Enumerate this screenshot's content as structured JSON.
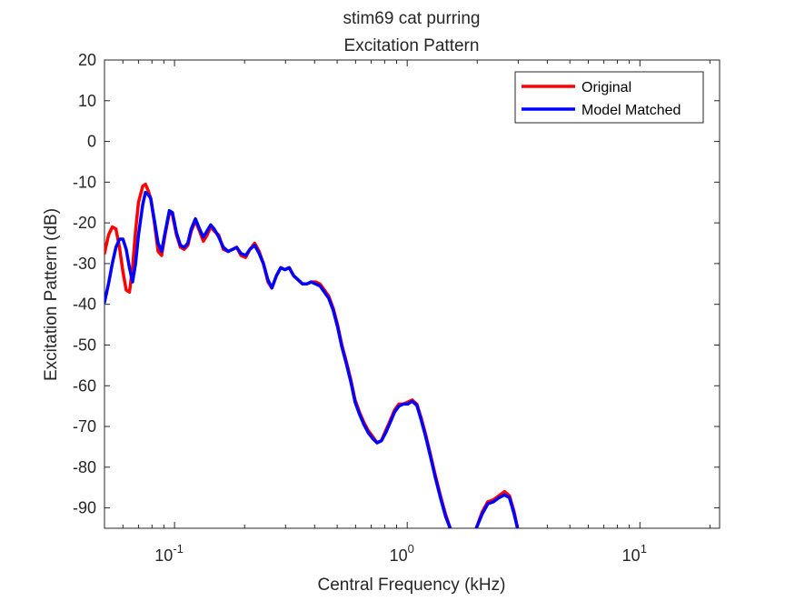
{
  "chart_data": {
    "type": "line",
    "title": "stim69 cat purring",
    "subtitle": "Excitation Pattern",
    "xlabel": "Central Frequency (kHz)",
    "ylabel": "Excitation Pattern (dB)",
    "xscale": "log",
    "xlim": [
      0.05,
      22
    ],
    "ylim": [
      -95,
      20
    ],
    "yticks": [
      "20",
      "10",
      "0",
      "-10",
      "-20",
      "-30",
      "-40",
      "-50",
      "-60",
      "-70",
      "-80",
      "-90"
    ],
    "xticks": [
      {
        "base": "10",
        "exp": "-1"
      },
      {
        "base": "10",
        "exp": "0"
      },
      {
        "base": "10",
        "exp": "1"
      }
    ],
    "legend": {
      "position": "top-right"
    },
    "grid": false,
    "series": [
      {
        "name": "Original",
        "color": "#ff0000",
        "points": [
          [
            0.05,
            -27.5
          ],
          [
            0.052,
            -23
          ],
          [
            0.054,
            -21
          ],
          [
            0.056,
            -21.5
          ],
          [
            0.058,
            -26
          ],
          [
            0.06,
            -32
          ],
          [
            0.062,
            -36.5
          ],
          [
            0.064,
            -37
          ],
          [
            0.066,
            -31
          ],
          [
            0.068,
            -22
          ],
          [
            0.07,
            -15
          ],
          [
            0.073,
            -11
          ],
          [
            0.075,
            -10.5
          ],
          [
            0.077,
            -12
          ],
          [
            0.079,
            -14
          ],
          [
            0.082,
            -20
          ],
          [
            0.085,
            -27
          ],
          [
            0.088,
            -28
          ],
          [
            0.091,
            -23
          ],
          [
            0.095,
            -17.5
          ],
          [
            0.098,
            -18
          ],
          [
            0.102,
            -23
          ],
          [
            0.106,
            -26
          ],
          [
            0.11,
            -26.5
          ],
          [
            0.114,
            -25.5
          ],
          [
            0.118,
            -22
          ],
          [
            0.123,
            -19.5
          ],
          [
            0.128,
            -22
          ],
          [
            0.133,
            -24.5
          ],
          [
            0.138,
            -23
          ],
          [
            0.143,
            -21
          ],
          [
            0.148,
            -22
          ],
          [
            0.155,
            -23
          ],
          [
            0.162,
            -26.5
          ],
          [
            0.17,
            -27
          ],
          [
            0.178,
            -26.5
          ],
          [
            0.185,
            -26
          ],
          [
            0.193,
            -28
          ],
          [
            0.202,
            -28.5
          ],
          [
            0.211,
            -26.5
          ],
          [
            0.221,
            -25
          ],
          [
            0.231,
            -27
          ],
          [
            0.241,
            -30
          ],
          [
            0.252,
            -34.5
          ],
          [
            0.262,
            -36
          ],
          [
            0.274,
            -33
          ],
          [
            0.286,
            -31
          ],
          [
            0.298,
            -31.5
          ],
          [
            0.311,
            -31
          ],
          [
            0.325,
            -33
          ],
          [
            0.34,
            -34
          ],
          [
            0.355,
            -35
          ],
          [
            0.37,
            -35
          ],
          [
            0.387,
            -34.5
          ],
          [
            0.404,
            -34.5
          ],
          [
            0.422,
            -35
          ],
          [
            0.441,
            -36.5
          ],
          [
            0.46,
            -38
          ],
          [
            0.481,
            -41
          ],
          [
            0.502,
            -45
          ],
          [
            0.524,
            -50
          ],
          [
            0.547,
            -54
          ],
          [
            0.572,
            -58.5
          ],
          [
            0.597,
            -63.5
          ],
          [
            0.624,
            -66.5
          ],
          [
            0.651,
            -69
          ],
          [
            0.68,
            -71
          ],
          [
            0.711,
            -72.5
          ],
          [
            0.742,
            -74
          ],
          [
            0.775,
            -73.5
          ],
          [
            0.809,
            -71
          ],
          [
            0.845,
            -68.5
          ],
          [
            0.882,
            -66
          ],
          [
            0.921,
            -64.5
          ],
          [
            0.962,
            -64.5
          ],
          [
            1.005,
            -64
          ],
          [
            1.05,
            -63.5
          ],
          [
            1.1,
            -64.5
          ],
          [
            1.15,
            -68
          ],
          [
            1.2,
            -72
          ],
          [
            1.26,
            -77
          ],
          [
            1.32,
            -82
          ],
          [
            1.39,
            -87
          ],
          [
            1.46,
            -91.5
          ],
          [
            1.53,
            -95
          ]
        ]
      },
      {
        "name": "",
        "color": "#ff0000",
        "points": [
          [
            1.98,
            -95
          ],
          [
            2.1,
            -91
          ],
          [
            2.22,
            -88.5
          ],
          [
            2.35,
            -88
          ],
          [
            2.48,
            -87
          ],
          [
            2.62,
            -86
          ],
          [
            2.75,
            -87
          ],
          [
            2.88,
            -91
          ],
          [
            2.98,
            -95
          ]
        ]
      },
      {
        "name": "Model Matched",
        "color": "#0000ff",
        "points": [
          [
            0.05,
            -39.5
          ],
          [
            0.052,
            -35
          ],
          [
            0.054,
            -30
          ],
          [
            0.056,
            -26
          ],
          [
            0.058,
            -24
          ],
          [
            0.06,
            -24
          ],
          [
            0.062,
            -26.5
          ],
          [
            0.064,
            -31
          ],
          [
            0.066,
            -34.5
          ],
          [
            0.068,
            -30
          ],
          [
            0.07,
            -23
          ],
          [
            0.073,
            -15.5
          ],
          [
            0.075,
            -12.5
          ],
          [
            0.077,
            -13
          ],
          [
            0.079,
            -14
          ],
          [
            0.082,
            -19.5
          ],
          [
            0.085,
            -25
          ],
          [
            0.088,
            -27
          ],
          [
            0.091,
            -22.5
          ],
          [
            0.095,
            -17
          ],
          [
            0.098,
            -17.5
          ],
          [
            0.102,
            -22.5
          ],
          [
            0.106,
            -25.5
          ],
          [
            0.11,
            -26
          ],
          [
            0.114,
            -25
          ],
          [
            0.118,
            -21.5
          ],
          [
            0.123,
            -19
          ],
          [
            0.128,
            -21.5
          ],
          [
            0.133,
            -23.5
          ],
          [
            0.138,
            -22
          ],
          [
            0.143,
            -20.5
          ],
          [
            0.148,
            -21.5
          ],
          [
            0.155,
            -23.5
          ],
          [
            0.162,
            -26
          ],
          [
            0.17,
            -27
          ],
          [
            0.178,
            -26.5
          ],
          [
            0.185,
            -26
          ],
          [
            0.193,
            -27.5
          ],
          [
            0.202,
            -28
          ],
          [
            0.211,
            -26.5
          ],
          [
            0.221,
            -25.5
          ],
          [
            0.231,
            -27.5
          ],
          [
            0.241,
            -30
          ],
          [
            0.252,
            -34
          ],
          [
            0.262,
            -36
          ],
          [
            0.274,
            -33
          ],
          [
            0.286,
            -31
          ],
          [
            0.298,
            -31.5
          ],
          [
            0.311,
            -31
          ],
          [
            0.325,
            -33
          ],
          [
            0.34,
            -34
          ],
          [
            0.355,
            -35
          ],
          [
            0.37,
            -35
          ],
          [
            0.387,
            -34.5
          ],
          [
            0.404,
            -35
          ],
          [
            0.422,
            -35.5
          ],
          [
            0.441,
            -37
          ],
          [
            0.46,
            -38.5
          ],
          [
            0.481,
            -41.5
          ],
          [
            0.502,
            -45.5
          ],
          [
            0.524,
            -50.5
          ],
          [
            0.547,
            -54.5
          ],
          [
            0.572,
            -59
          ],
          [
            0.597,
            -64
          ],
          [
            0.624,
            -67
          ],
          [
            0.651,
            -69.5
          ],
          [
            0.68,
            -71.5
          ],
          [
            0.711,
            -73
          ],
          [
            0.742,
            -74
          ],
          [
            0.775,
            -73.5
          ],
          [
            0.809,
            -71.5
          ],
          [
            0.845,
            -69
          ],
          [
            0.882,
            -66.5
          ],
          [
            0.921,
            -65
          ],
          [
            0.962,
            -64.5
          ],
          [
            1.005,
            -64.5
          ],
          [
            1.05,
            -63.8
          ],
          [
            1.1,
            -64.8
          ],
          [
            1.15,
            -68.5
          ],
          [
            1.2,
            -72.5
          ],
          [
            1.26,
            -77.5
          ],
          [
            1.32,
            -82.5
          ],
          [
            1.39,
            -87.5
          ],
          [
            1.46,
            -92
          ],
          [
            1.53,
            -95
          ]
        ]
      },
      {
        "name": "",
        "color": "#0000ff",
        "points": [
          [
            1.98,
            -95
          ],
          [
            2.1,
            -91.5
          ],
          [
            2.22,
            -89
          ],
          [
            2.35,
            -88.5
          ],
          [
            2.48,
            -87.5
          ],
          [
            2.62,
            -86.8
          ],
          [
            2.75,
            -87.5
          ],
          [
            2.88,
            -91.5
          ],
          [
            2.98,
            -95
          ]
        ]
      }
    ]
  }
}
